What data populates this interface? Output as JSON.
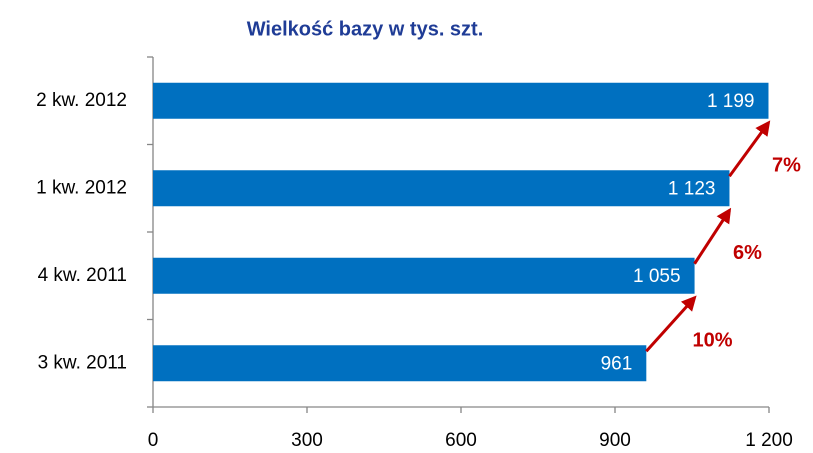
{
  "chart_data": {
    "type": "bar",
    "orientation": "horizontal",
    "title": "Wielkość bazy w tys. szt.",
    "categories": [
      "3 kw. 2011",
      "4 kw. 2011",
      "1 kw. 2012",
      "2 kw. 2012"
    ],
    "values": [
      961,
      1055,
      1123,
      1199
    ],
    "value_labels": [
      "961",
      "1 055",
      "1 123",
      "1 199"
    ],
    "color": "#0070c0",
    "xlim": [
      0,
      1200
    ],
    "xticks": [
      0,
      300,
      600,
      900,
      {
        "value": 1200,
        "label": "1 200"
      }
    ],
    "annotations": [
      "10%",
      "6%",
      "7%"
    ],
    "annotation_color": "#c00000",
    "grid": false
  }
}
